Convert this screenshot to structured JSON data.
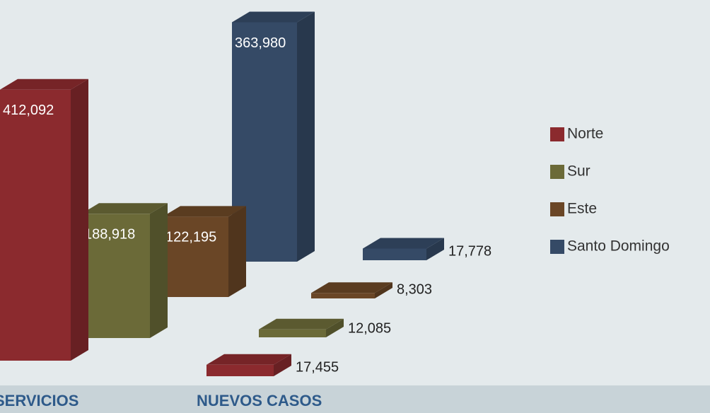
{
  "chart_data": {
    "type": "bar",
    "categories": [
      "SERVICIOS",
      "NUEVOS CASOS"
    ],
    "series": [
      {
        "name": "Norte",
        "color": "#8b2a2e",
        "values": [
          412092,
          17455
        ],
        "value_labels": [
          "412,092",
          "17,455"
        ]
      },
      {
        "name": "Sur",
        "color": "#6b6a38",
        "values": [
          188918,
          12085
        ],
        "value_labels": [
          "188,918",
          "12,085"
        ]
      },
      {
        "name": "Este",
        "color": "#6a4626",
        "values": [
          122195,
          8303
        ],
        "value_labels": [
          "122,195",
          "8,303"
        ]
      },
      {
        "name": "Santo Domingo",
        "color": "#354a66",
        "values": [
          363980,
          17778
        ],
        "value_labels": [
          "363,980",
          "17,778"
        ]
      }
    ]
  }
}
